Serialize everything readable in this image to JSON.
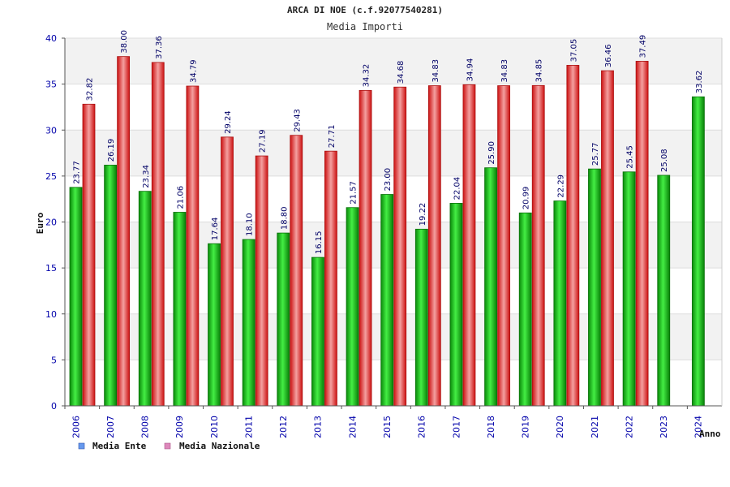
{
  "chart_data": {
    "type": "bar",
    "title": "ARCA DI NOE (c.f.92077540281)",
    "subtitle": "Media Importi",
    "xlabel": "Anno",
    "ylabel": "Euro",
    "ylim": [
      0,
      40
    ],
    "yticks": [
      0,
      5,
      10,
      15,
      20,
      25,
      30,
      35,
      40
    ],
    "grid": true,
    "legend_position": "bottom-left",
    "categories": [
      "2006",
      "2007",
      "2008",
      "2009",
      "2010",
      "2011",
      "2012",
      "2013",
      "2014",
      "2015",
      "2016",
      "2017",
      "2018",
      "2019",
      "2020",
      "2021",
      "2022",
      "2023",
      "2024"
    ],
    "series": [
      {
        "name": "Media Ente",
        "legend_color": "#6699ee",
        "bar_color": "#11bb11",
        "values": [
          23.77,
          26.19,
          23.34,
          21.06,
          17.64,
          18.1,
          18.8,
          16.15,
          21.57,
          23.0,
          19.22,
          22.04,
          25.9,
          20.99,
          22.29,
          25.77,
          25.45,
          25.08,
          33.62
        ],
        "labels": [
          "23.77",
          "26.19",
          "23.34",
          "21.06",
          "17.64",
          "18.10",
          "18.80",
          "16.15",
          "21.57",
          "23.00",
          "19.22",
          "22.04",
          "25.90",
          "20.99",
          "22.29",
          "25.77",
          "25.45",
          "25.08",
          "33.62"
        ]
      },
      {
        "name": "Media Nazionale",
        "legend_color": "#dd88bb",
        "bar_color": "#ee2222",
        "values": [
          32.82,
          38.0,
          37.36,
          34.79,
          29.24,
          27.19,
          29.43,
          27.71,
          34.32,
          34.68,
          34.83,
          34.94,
          34.83,
          34.85,
          37.05,
          36.46,
          37.49,
          null,
          null
        ],
        "labels": [
          "32.82",
          "38.00",
          "37.36",
          "34.79",
          "29.24",
          "27.19",
          "29.43",
          "27.71",
          "34.32",
          "34.68",
          "34.83",
          "34.94",
          "34.83",
          "34.85",
          "37.05",
          "36.46",
          "37.49",
          null,
          null
        ]
      }
    ]
  }
}
